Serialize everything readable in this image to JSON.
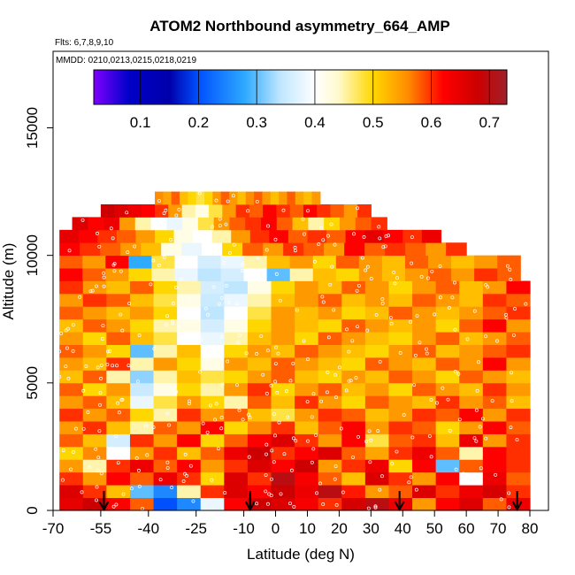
{
  "chart_data": {
    "type": "heatmap",
    "title": "ATOM2 Northbound asymmetry_664_AMP",
    "subtitle_flights": "Flts: 6,7,8,9,10",
    "subtitle_dates": "MMDD: 0210,0213,0215,0218,0219",
    "xlabel": "Latitude (deg N)",
    "ylabel": "Altitude (m)",
    "xlim": [
      -70,
      85
    ],
    "ylim": [
      0,
      18000
    ],
    "x_ticks": [
      -70,
      -55,
      -40,
      -25,
      -10,
      0,
      10,
      20,
      30,
      40,
      50,
      60,
      70,
      80
    ],
    "y_ticks": [
      0,
      5000,
      10000,
      15000
    ],
    "colorbar": {
      "range": [
        0.02,
        0.73
      ],
      "ticks": [
        0.1,
        0.2,
        0.3,
        0.4,
        0.5,
        0.6,
        0.7
      ],
      "stops": [
        {
          "v": 0.02,
          "color": "#7f00ff"
        },
        {
          "v": 0.08,
          "color": "#0000c8"
        },
        {
          "v": 0.15,
          "color": "#0000aa"
        },
        {
          "v": 0.2,
          "color": "#0050ff"
        },
        {
          "v": 0.28,
          "color": "#2eaaff"
        },
        {
          "v": 0.34,
          "color": "#bfe6ff"
        },
        {
          "v": 0.4,
          "color": "#ffffff"
        },
        {
          "v": 0.44,
          "color": "#fffacd"
        },
        {
          "v": 0.5,
          "color": "#ffd700"
        },
        {
          "v": 0.56,
          "color": "#ff8c00"
        },
        {
          "v": 0.62,
          "color": "#ff0000"
        },
        {
          "v": 0.68,
          "color": "#cc0000"
        },
        {
          "v": 0.73,
          "color": "#a0202a"
        }
      ]
    },
    "arrows_lat": [
      -54,
      -8,
      39,
      76
    ],
    "layers": [
      {
        "alt": 250,
        "lat_min": -68,
        "lat_max": 80,
        "values": [
          0.65,
          0.68,
          0.62,
          0.58,
          0.2,
          0.25,
          0.38,
          0.62,
          0.68,
          0.66,
          0.63,
          0.6,
          0.67,
          0.7,
          0.64,
          0.55,
          0.62,
          0.66,
          0.58,
          0.64
        ]
      },
      {
        "alt": 750,
        "lat_min": -68,
        "lat_max": 80,
        "values": [
          0.66,
          0.6,
          0.52,
          0.3,
          0.25,
          0.45,
          0.6,
          0.66,
          0.62,
          0.68,
          0.64,
          0.7,
          0.61,
          0.55,
          0.58,
          0.66,
          0.6,
          0.64,
          0.67,
          0.6
        ]
      },
      {
        "alt": 1250,
        "lat_min": -68,
        "lat_max": 80,
        "values": [
          0.6,
          0.55,
          0.62,
          0.58,
          0.64,
          0.6,
          0.5,
          0.66,
          0.6,
          0.7,
          0.63,
          0.58,
          0.52,
          0.66,
          0.6,
          0.55,
          0.62,
          0.4,
          0.64,
          0.58
        ]
      },
      {
        "alt": 1750,
        "lat_min": -68,
        "lat_max": 80,
        "values": [
          0.55,
          0.45,
          0.6,
          0.64,
          0.58,
          0.62,
          0.55,
          0.6,
          0.66,
          0.62,
          0.68,
          0.55,
          0.6,
          0.64,
          0.5,
          0.62,
          0.3,
          0.58,
          0.62,
          0.6
        ]
      },
      {
        "alt": 2250,
        "lat_min": -68,
        "lat_max": 80,
        "values": [
          0.5,
          0.56,
          0.4,
          0.55,
          0.6,
          0.52,
          0.58,
          0.64,
          0.68,
          0.6,
          0.62,
          0.66,
          0.58,
          0.54,
          0.6,
          0.64,
          0.58,
          0.45,
          0.62,
          0.6
        ]
      },
      {
        "alt": 2750,
        "lat_min": -68,
        "lat_max": 80,
        "values": [
          0.58,
          0.52,
          0.36,
          0.6,
          0.55,
          0.62,
          0.5,
          0.58,
          0.62,
          0.66,
          0.6,
          0.55,
          0.62,
          0.48,
          0.58,
          0.6,
          0.52,
          0.64,
          0.55,
          0.6
        ]
      },
      {
        "alt": 3250,
        "lat_min": -68,
        "lat_max": 80,
        "values": [
          0.55,
          0.6,
          0.52,
          0.45,
          0.58,
          0.55,
          0.62,
          0.5,
          0.56,
          0.6,
          0.52,
          0.58,
          0.62,
          0.55,
          0.6,
          0.58,
          0.5,
          0.55,
          0.62,
          0.58
        ]
      },
      {
        "alt": 3750,
        "lat_min": -68,
        "lat_max": 80,
        "values": [
          0.6,
          0.55,
          0.58,
          0.5,
          0.45,
          0.6,
          0.55,
          0.58,
          0.52,
          0.48,
          0.55,
          0.6,
          0.58,
          0.52,
          0.55,
          0.6,
          0.58,
          0.62,
          0.55,
          0.6
        ]
      },
      {
        "alt": 4250,
        "lat_min": -68,
        "lat_max": 80,
        "values": [
          0.55,
          0.58,
          0.52,
          0.38,
          0.48,
          0.55,
          0.5,
          0.45,
          0.58,
          0.52,
          0.6,
          0.55,
          0.5,
          0.58,
          0.55,
          0.52,
          0.6,
          0.55,
          0.58,
          0.52
        ]
      },
      {
        "alt": 4750,
        "lat_min": -68,
        "lat_max": 80,
        "values": [
          0.58,
          0.5,
          0.55,
          0.35,
          0.42,
          0.5,
          0.45,
          0.55,
          0.6,
          0.5,
          0.55,
          0.58,
          0.52,
          0.55,
          0.5,
          0.58,
          0.55,
          0.52,
          0.6,
          0.55
        ]
      },
      {
        "alt": 5250,
        "lat_min": -68,
        "lat_max": 80,
        "values": [
          0.52,
          0.58,
          0.45,
          0.32,
          0.45,
          0.52,
          0.48,
          0.5,
          0.55,
          0.58,
          0.52,
          0.5,
          0.55,
          0.52,
          0.58,
          0.55,
          0.5,
          0.58,
          0.55,
          0.52
        ]
      },
      {
        "alt": 5750,
        "lat_min": -68,
        "lat_max": 80,
        "values": [
          0.55,
          0.52,
          0.6,
          0.45,
          0.55,
          0.5,
          0.42,
          0.55,
          0.52,
          0.58,
          0.55,
          0.52,
          0.5,
          0.58,
          0.55,
          0.52,
          0.58,
          0.55,
          0.62,
          0.55
        ]
      },
      {
        "alt": 6250,
        "lat_min": -68,
        "lat_max": 80,
        "values": [
          0.58,
          0.55,
          0.5,
          0.3,
          0.45,
          0.52,
          0.4,
          0.5,
          0.55,
          0.52,
          0.58,
          0.55,
          0.52,
          0.5,
          0.55,
          0.58,
          0.52,
          0.55,
          0.58,
          0.6
        ]
      },
      {
        "alt": 6750,
        "lat_min": -68,
        "lat_max": 80,
        "values": [
          0.55,
          0.5,
          0.58,
          0.52,
          0.48,
          0.4,
          0.38,
          0.45,
          0.52,
          0.55,
          0.5,
          0.58,
          0.55,
          0.52,
          0.5,
          0.55,
          0.58,
          0.52,
          0.55,
          0.58
        ]
      },
      {
        "alt": 7250,
        "lat_min": -68,
        "lat_max": 80,
        "values": [
          0.52,
          0.58,
          0.55,
          0.5,
          0.45,
          0.42,
          0.36,
          0.42,
          0.5,
          0.55,
          0.52,
          0.5,
          0.58,
          0.55,
          0.52,
          0.55,
          0.5,
          0.58,
          0.62,
          0.55
        ]
      },
      {
        "alt": 7750,
        "lat_min": -68,
        "lat_max": 80,
        "values": [
          0.58,
          0.55,
          0.52,
          0.55,
          0.5,
          0.4,
          0.34,
          0.4,
          0.48,
          0.55,
          0.52,
          0.55,
          0.5,
          0.52,
          0.58,
          0.55,
          0.52,
          0.55,
          0.58,
          0.6
        ]
      },
      {
        "alt": 8250,
        "lat_min": -68,
        "lat_max": 80,
        "values": [
          0.55,
          0.6,
          0.58,
          0.52,
          0.48,
          0.42,
          0.35,
          0.38,
          0.45,
          0.52,
          0.55,
          0.58,
          0.52,
          0.55,
          0.52,
          0.58,
          0.55,
          0.52,
          0.6,
          0.58
        ]
      },
      {
        "alt": 8750,
        "lat_min": -68,
        "lat_max": 80,
        "values": [
          0.6,
          0.55,
          0.52,
          0.58,
          0.5,
          0.45,
          0.36,
          0.34,
          0.42,
          0.5,
          0.55,
          0.52,
          0.58,
          0.55,
          0.5,
          0.55,
          0.58,
          0.52,
          0.55,
          0.62
        ]
      },
      {
        "alt": 9250,
        "lat_min": -68,
        "lat_max": 77,
        "values": [
          0.62,
          0.58,
          0.55,
          0.5,
          0.45,
          0.38,
          0.34,
          0.36,
          0.4,
          0.3,
          0.45,
          0.52,
          0.5,
          0.55,
          0.52,
          0.55,
          0.58,
          0.55,
          0.6,
          0.58
        ]
      },
      {
        "alt": 9750,
        "lat_min": -68,
        "lat_max": 77,
        "values": [
          0.58,
          0.55,
          0.62,
          0.28,
          0.48,
          0.4,
          0.36,
          0.38,
          0.45,
          0.52,
          0.55,
          0.5,
          0.58,
          0.55,
          0.52,
          0.58,
          0.55,
          0.52,
          0.55,
          0.58
        ]
      },
      {
        "alt": 10250,
        "lat_min": -68,
        "lat_max": 60,
        "values": [
          0.62,
          0.6,
          0.58,
          0.55,
          0.52,
          0.42,
          0.38,
          0.4,
          0.5,
          0.58,
          0.55,
          0.6,
          0.58,
          0.55,
          0.62,
          0.58,
          0.6,
          0.58,
          0.55,
          0.6
        ]
      },
      {
        "alt": 10750,
        "lat_min": -68,
        "lat_max": 52,
        "values": [
          0.65,
          0.62,
          0.6,
          0.58,
          0.55,
          0.5,
          0.42,
          0.4,
          0.45,
          0.55,
          0.6,
          0.62,
          0.58,
          0.6,
          0.58,
          0.62,
          0.65,
          0.62,
          0.6,
          0.64
        ]
      },
      {
        "alt": 11250,
        "lat_min": -64,
        "lat_max": 35,
        "values": [
          0.66,
          0.62,
          0.64,
          0.55,
          0.45,
          0.4,
          0.38,
          0.42,
          0.48,
          0.55,
          0.58,
          0.6,
          0.62,
          0.58,
          0.52,
          0.45,
          0.5,
          0.55,
          0.58,
          0.6
        ]
      },
      {
        "alt": 11750,
        "lat_min": -55,
        "lat_max": 30,
        "values": [
          0.68,
          0.66,
          0.64,
          0.62,
          0.6,
          0.55,
          0.45,
          0.42,
          0.48,
          0.55,
          0.6,
          0.58,
          0.62,
          0.6,
          0.58,
          0.62,
          0.6,
          0.58,
          0.55,
          0.6
        ]
      },
      {
        "alt": 12250,
        "lat_min": -38,
        "lat_max": 14,
        "values": [
          0.56,
          0.54,
          0.58,
          0.52,
          0.5,
          0.48,
          0.5,
          0.55,
          0.58,
          0.55,
          0.52,
          0.56,
          0.58,
          0.55,
          0.52,
          0.55,
          0.58,
          0.54,
          0.52,
          0.55
        ]
      }
    ]
  }
}
